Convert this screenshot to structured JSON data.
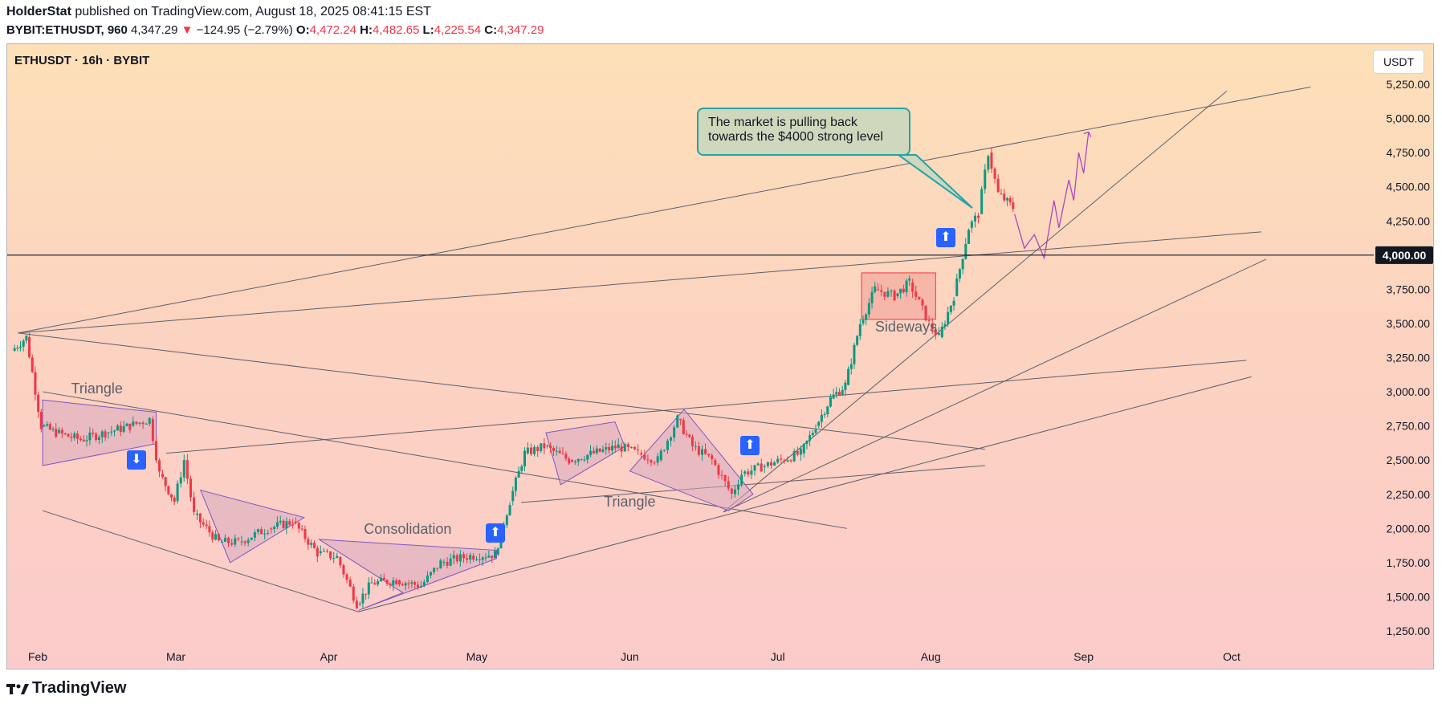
{
  "header": {
    "publisher": "HolderStat",
    "published_text": "published on TradingView.com, August 18, 2025 08:41:15 EST",
    "symbol": "BYBIT:ETHUSDT, 960",
    "last_price": "4,347.29",
    "change": "−124.95 (−2.79%)",
    "open_label": "O:",
    "open": "4,472.24",
    "high_label": "H:",
    "high": "4,482.65",
    "low_label": "L:",
    "low": "4,225.54",
    "close_label": "C:",
    "close": "4,347.29"
  },
  "chart_title": "ETHUSDT · 16h · BYBIT",
  "currency_button": "USDT",
  "callout_text_line1": "The market is pulling back",
  "callout_text_line2": "towards the $4000 strong level",
  "footer_brand": "TradingView",
  "colors": {
    "up": "#089981",
    "down": "#f23645",
    "pattern_fill": "#d9aac0",
    "pattern_stroke": "#7e57c2",
    "arrow_bg": "#2962ff",
    "callout_bg": "#cfd8bd",
    "callout_border": "#22a3a8",
    "box_fill": "#f4a9a0"
  },
  "chart_data": {
    "type": "candlestick",
    "ylim": [
      1000,
      5400
    ],
    "y_ticks": [
      1250,
      1500,
      1750,
      2000,
      2250,
      2500,
      2750,
      3000,
      3250,
      3500,
      3750,
      4000,
      4250,
      4500,
      4750,
      5000,
      5250
    ],
    "y_tick_labels": [
      "1,250.00",
      "1,500.00",
      "1,750.00",
      "2,000.00",
      "2,250.00",
      "2,500.00",
      "2,750.00",
      "3,000.00",
      "3,250.00",
      "3,500.00",
      "3,750.00",
      "4,000.00",
      "4,250.00",
      "4,500.00",
      "4,750.00",
      "5,000.00",
      "5,250.00"
    ],
    "x_ticks": [
      {
        "label": "Feb",
        "date": "2025-02-01"
      },
      {
        "label": "Mar",
        "date": "2025-03-01"
      },
      {
        "label": "Apr",
        "date": "2025-04-01"
      },
      {
        "label": "May",
        "date": "2025-05-01"
      },
      {
        "label": "Jun",
        "date": "2025-06-01"
      },
      {
        "label": "Jul",
        "date": "2025-07-01"
      },
      {
        "label": "Aug",
        "date": "2025-08-01"
      },
      {
        "label": "Sep",
        "date": "2025-09-01"
      },
      {
        "label": "Oct",
        "date": "2025-10-01"
      }
    ],
    "highlighted_level": {
      "value": 4000,
      "label": "4,000.00"
    },
    "price_path": [
      [
        "2025-01-27",
        3300
      ],
      [
        "2025-01-30",
        3400
      ],
      [
        "2025-02-02",
        2750
      ],
      [
        "2025-02-05",
        2700
      ],
      [
        "2025-02-10",
        2650
      ],
      [
        "2025-02-15",
        2700
      ],
      [
        "2025-02-20",
        2750
      ],
      [
        "2025-02-24",
        2800
      ],
      [
        "2025-02-26",
        2400
      ],
      [
        "2025-03-01",
        2200
      ],
      [
        "2025-03-03",
        2500
      ],
      [
        "2025-03-05",
        2100
      ],
      [
        "2025-03-10",
        1900
      ],
      [
        "2025-03-14",
        1900
      ],
      [
        "2025-03-20",
        2000
      ],
      [
        "2025-03-25",
        2050
      ],
      [
        "2025-03-30",
        1820
      ],
      [
        "2025-04-03",
        1790
      ],
      [
        "2025-04-07",
        1450
      ],
      [
        "2025-04-10",
        1600
      ],
      [
        "2025-04-15",
        1620
      ],
      [
        "2025-04-20",
        1580
      ],
      [
        "2025-04-24",
        1750
      ],
      [
        "2025-04-30",
        1800
      ],
      [
        "2025-05-05",
        1810
      ],
      [
        "2025-05-08",
        2200
      ],
      [
        "2025-05-11",
        2550
      ],
      [
        "2025-05-15",
        2600
      ],
      [
        "2025-05-20",
        2500
      ],
      [
        "2025-05-25",
        2550
      ],
      [
        "2025-05-30",
        2600
      ],
      [
        "2025-06-03",
        2550
      ],
      [
        "2025-06-07",
        2500
      ],
      [
        "2025-06-11",
        2800
      ],
      [
        "2025-06-14",
        2600
      ],
      [
        "2025-06-18",
        2500
      ],
      [
        "2025-06-22",
        2250
      ],
      [
        "2025-06-24",
        2400
      ],
      [
        "2025-06-28",
        2450
      ],
      [
        "2025-07-02",
        2500
      ],
      [
        "2025-07-06",
        2550
      ],
      [
        "2025-07-09",
        2750
      ],
      [
        "2025-07-12",
        2950
      ],
      [
        "2025-07-15",
        3050
      ],
      [
        "2025-07-18",
        3500
      ],
      [
        "2025-07-21",
        3750
      ],
      [
        "2025-07-25",
        3700
      ],
      [
        "2025-07-28",
        3800
      ],
      [
        "2025-08-01",
        3500
      ],
      [
        "2025-08-03",
        3400
      ],
      [
        "2025-08-06",
        3700
      ],
      [
        "2025-08-09",
        4200
      ],
      [
        "2025-08-11",
        4300
      ],
      [
        "2025-08-13",
        4750
      ],
      [
        "2025-08-15",
        4450
      ],
      [
        "2025-08-18",
        4347
      ]
    ],
    "projection_path": [
      [
        "2025-08-18",
        4300
      ],
      [
        "2025-08-20",
        4050
      ],
      [
        "2025-08-22",
        4150
      ],
      [
        "2025-08-24",
        3980
      ],
      [
        "2025-08-26",
        4400
      ],
      [
        "2025-08-27",
        4200
      ],
      [
        "2025-08-29",
        4550
      ],
      [
        "2025-08-30",
        4400
      ],
      [
        "2025-08-31",
        4750
      ],
      [
        "2025-09-01",
        4600
      ],
      [
        "2025-09-02",
        4900
      ]
    ],
    "annotations": [
      {
        "text": "Triangle",
        "date": "2025-02-13",
        "price": 2990
      },
      {
        "text": "Consolidation",
        "date": "2025-04-17",
        "price": 1960
      },
      {
        "text": "Triangle",
        "date": "2025-06-01",
        "price": 2160
      },
      {
        "text": "Sideways",
        "date": "2025-07-27",
        "price": 3440
      }
    ]
  }
}
